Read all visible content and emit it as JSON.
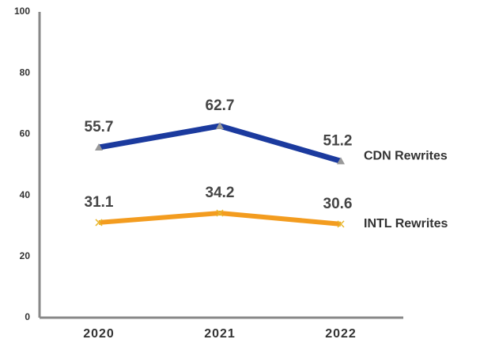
{
  "chart_data": {
    "type": "line",
    "categories": [
      "2020",
      "2021",
      "2022"
    ],
    "series": [
      {
        "name": "CDN Rewrites",
        "color": "#1b3a9e",
        "values": [
          55.7,
          62.7,
          51.2
        ]
      },
      {
        "name": "INTL Rewrites",
        "color": "#f39c1f",
        "values": [
          31.1,
          34.2,
          30.6
        ]
      }
    ],
    "ylim": [
      0,
      100
    ],
    "yticks": [
      0,
      20,
      40,
      60,
      80,
      100
    ],
    "grid": false
  }
}
